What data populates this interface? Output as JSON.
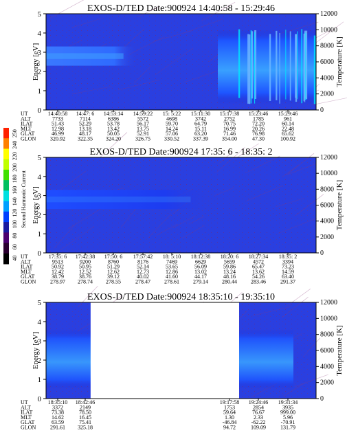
{
  "colorbar": {
    "title": "Second Harmonic Current",
    "ticks": [
      "40",
      "60",
      "80",
      "100",
      "120",
      "140",
      "160",
      "180",
      "200",
      "220",
      "240",
      "250"
    ],
    "colors": [
      "#000000",
      "#2a0030",
      "#4b0070",
      "#1a1aa0",
      "#0040ff",
      "#00a0ff",
      "#00e0e0",
      "#00c060",
      "#40e000",
      "#c0ff00",
      "#ffff00",
      "#ff8000",
      "#ff2000"
    ]
  },
  "panels": [
    {
      "title": "EXOS-D/TED   Date:900924  14:40:58 - 15:29:46",
      "ylabel": "Energy [eV]",
      "ylabel_right": "Temperature [K]",
      "yticks": [
        "0",
        "1",
        "2",
        "3",
        "4",
        "5"
      ],
      "yticks_right": [
        "0",
        "2000",
        "4000",
        "6000",
        "8000",
        "10000",
        "12000"
      ],
      "eph_labels": [
        "UT",
        "ALT",
        "ILAT",
        "MLT",
        "GLAT",
        "GLON"
      ],
      "eph_cols": [
        [
          "14:40:58",
          "7733",
          "51.43",
          "12.98",
          "46.99",
          "320.92"
        ],
        [
          "14:47: 6",
          "7114",
          "52.29",
          "13.18",
          "48.17",
          "322.35"
        ],
        [
          "14:53:14",
          "6386",
          "53.78",
          "13.42",
          "50.05",
          "324.20"
        ],
        [
          "14:59:22",
          "5572",
          "56.17",
          "13.75",
          "52.91",
          "326.75"
        ],
        [
          "15: 5:22",
          "4698",
          "59.70",
          "14.24",
          "57.06",
          "330.52"
        ],
        [
          "15:11:30",
          "3742",
          "64.79",
          "15.11",
          "63.20",
          "337.39"
        ],
        [
          "15:17:38",
          "2752",
          "70.75",
          "16.99",
          "71.46",
          "354.00"
        ],
        [
          "15:23:46",
          "1785",
          "72.20",
          "20.26",
          "76.98",
          "47.30"
        ],
        [
          "15:29:46",
          "961",
          "60.14",
          "22.48",
          "65.62",
          "100.92"
        ]
      ],
      "data_gap": null
    },
    {
      "title": "EXOS-D/TED   Date:900924  17:35: 6 - 18:35: 2",
      "ylabel": "Energy [eV]",
      "ylabel_right": "Temperature [K]",
      "yticks": [
        "0",
        "1",
        "2",
        "3",
        "4",
        "5"
      ],
      "yticks_right": [
        "0",
        "2000",
        "4000",
        "6000",
        "8000",
        "10000",
        "12000"
      ],
      "eph_labels": [
        "UT",
        "ALT",
        "ILAT",
        "MLT",
        "GLAT",
        "GLON"
      ],
      "eph_cols": [
        [
          "17:35: 6",
          "9513",
          "50.92",
          "12.42",
          "38.79",
          "278.97"
        ],
        [
          "17:42:38",
          "9200",
          "50.95",
          "12.52",
          "38.76",
          "278.74"
        ],
        [
          "17:50: 6",
          "8760",
          "51.29",
          "12.62",
          "39.12",
          "278.55"
        ],
        [
          "17:57:42",
          "8176",
          "52.14",
          "12.73",
          "40.02",
          "278.47"
        ],
        [
          "18: 5:10",
          "7469",
          "53.65",
          "12.86",
          "41.60",
          "278.61"
        ],
        [
          "18:12:38",
          "6629",
          "56.09",
          "13.02",
          "44.17",
          "279.14"
        ],
        [
          "18:20: 6",
          "5659",
          "59.86",
          "13.24",
          "48.16",
          "280.44"
        ],
        [
          "18:27:34",
          "4572",
          "65.47",
          "13.62",
          "54.26",
          "283.46"
        ],
        [
          "18:35: 2",
          "3394",
          "73.23",
          "14.59",
          "63.40",
          "291.37"
        ]
      ],
      "data_gap": null
    },
    {
      "title": "EXOS-D/TED   Date:900924  18:35:10 - 19:35:10",
      "ylabel": "Energy [eV]",
      "ylabel_right": "Temperature [K]",
      "yticks": [
        "0",
        "1",
        "2",
        "3",
        "4",
        "5"
      ],
      "yticks_right": [
        "0",
        "2000",
        "4000",
        "6000",
        "8000",
        "10000",
        "12000"
      ],
      "eph_labels": [
        "UT",
        "ALT",
        "ILAT",
        "MLT",
        "GLAT",
        "GLON"
      ],
      "eph_cols": [
        [
          "18:35:10",
          "3372",
          "73.38",
          "14.62",
          "63.59",
          "291.61"
        ],
        [
          "18:42:46",
          "2149",
          "78.50",
          "16.45",
          "75.41",
          "325.18"
        ],
        [
          "",
          "",
          "",
          "",
          "",
          ""
        ],
        [
          "",
          "",
          "",
          "",
          "",
          ""
        ],
        [
          "",
          "",
          "",
          "",
          "",
          ""
        ],
        [
          "",
          "",
          "",
          "",
          "",
          ""
        ],
        [
          "19:17:58",
          "1753",
          "59.64",
          "1.30",
          "-46.84",
          "94.72"
        ],
        [
          "19:24:46",
          "2854",
          "76.67",
          "2.33",
          "-62.22",
          "109.09"
        ],
        [
          "19:31:34",
          "3935",
          "999.00",
          "5.96",
          "-70.91",
          "131.79"
        ]
      ],
      "data_gap": [
        0.165,
        0.715
      ]
    }
  ],
  "chart_data": [
    {
      "type": "heatmap",
      "title": "EXOS-D/TED   Date:900924  14:40:58 - 15:29:46",
      "xlabel": "UT",
      "ylabel": "Energy [eV]",
      "ylabel_right": "Temperature [K]",
      "x": [
        "14:40:58",
        "14:47: 6",
        "14:53:14",
        "14:59:22",
        "15: 5:22",
        "15:11:30",
        "15:17:38",
        "15:23:46",
        "15:29:46"
      ],
      "ylim": [
        0,
        5
      ],
      "ylim_right": [
        0,
        12000
      ],
      "features": [
        {
          "ut_from": "14:40:58",
          "ut_to": "14:53:14",
          "energy_from": 2.3,
          "energy_to": 3.3,
          "level": "high"
        },
        {
          "ut_from": "15:17:38",
          "ut_to": "15:29:46",
          "energy_from": 0.3,
          "energy_to": 4.2,
          "level": "high"
        }
      ]
    },
    {
      "type": "heatmap",
      "title": "EXOS-D/TED   Date:900924  17:35: 6 - 18:35: 2",
      "xlabel": "UT",
      "ylabel": "Energy [eV]",
      "ylabel_right": "Temperature [K]",
      "x": [
        "17:35: 6",
        "17:42:38",
        "17:50: 6",
        "17:57:42",
        "18: 5:10",
        "18:12:38",
        "18:20: 6",
        "18:27:34",
        "18:35: 2"
      ],
      "ylim": [
        0,
        5
      ],
      "ylim_right": [
        0,
        12000
      ],
      "features": [
        {
          "ut_from": "17:35: 6",
          "ut_to": "18: 5:10",
          "energy_from": 2.3,
          "energy_to": 3.3,
          "level": "medium"
        }
      ]
    },
    {
      "type": "heatmap",
      "title": "EXOS-D/TED   Date:900924  18:35:10 - 19:35:10",
      "xlabel": "UT",
      "ylabel": "Energy [eV]",
      "ylabel_right": "Temperature [K]",
      "x": [
        "18:35:10",
        "18:42:46",
        "19:17:58",
        "19:24:46",
        "19:31:34"
      ],
      "ylim": [
        0,
        5
      ],
      "ylim_right": [
        0,
        12000
      ],
      "features": [
        {
          "ut_from": "18:35:10",
          "ut_to": "18:42:46",
          "energy_from": 0.5,
          "energy_to": 3.6,
          "level": "medium"
        },
        {
          "ut_from": "19:17:58",
          "ut_to": "19:31:34",
          "energy_from": 0.5,
          "energy_to": 3.6,
          "level": "medium"
        }
      ]
    }
  ]
}
